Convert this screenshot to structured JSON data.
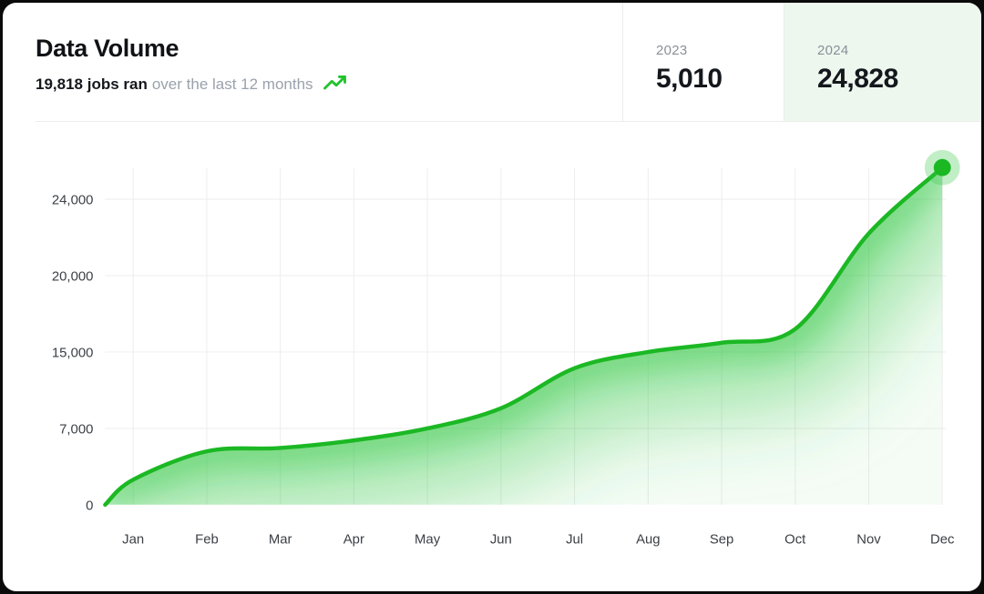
{
  "card": {
    "title": "Data Volume",
    "subtitle_value": "19,818 jobs ran",
    "subtitle_rest": "over the last 12 months",
    "trend_icon": "trend-up-icon",
    "accent_color": "#1bb824",
    "highlight_bg": "#edf7ee"
  },
  "stats": [
    {
      "year": "2023",
      "value": "5,010",
      "highlighted": false
    },
    {
      "year": "2024",
      "value": "24,828",
      "highlighted": true
    }
  ],
  "chart_data": {
    "type": "area",
    "title": "Data Volume",
    "categories": [
      "Jan",
      "Feb",
      "Mar",
      "Apr",
      "May",
      "Jun",
      "Jul",
      "Aug",
      "Sep",
      "Oct",
      "Nov",
      "Dec"
    ],
    "values": [
      2300,
      4900,
      5200,
      5900,
      7000,
      9100,
      13300,
      15000,
      15600,
      16500,
      22200,
      24828
    ],
    "leading_zero_point": true,
    "end_point": {
      "month": "Dec",
      "value": 24828
    },
    "y_ticks": [
      {
        "value": 0,
        "label": "0"
      },
      {
        "value": 7000,
        "label": "7,000"
      },
      {
        "value": 15000,
        "label": "15,000"
      },
      {
        "value": 20000,
        "label": "20,000"
      },
      {
        "value": 24000,
        "label": "24,000"
      }
    ],
    "axis_note": "y-axis is non-linear: tick values unevenly stepped but evenly spaced; values between ticks estimated from gridlines (nearest 100)",
    "xlabel": "",
    "ylabel": "",
    "grid": true,
    "legend": "none",
    "colors": {
      "line": "#1bb824",
      "glow": "#35c845",
      "grid": "#ededed",
      "axis_text": "#3b4046",
      "marker": "#1bb824",
      "marker_halo_opacity": 0.3
    }
  }
}
